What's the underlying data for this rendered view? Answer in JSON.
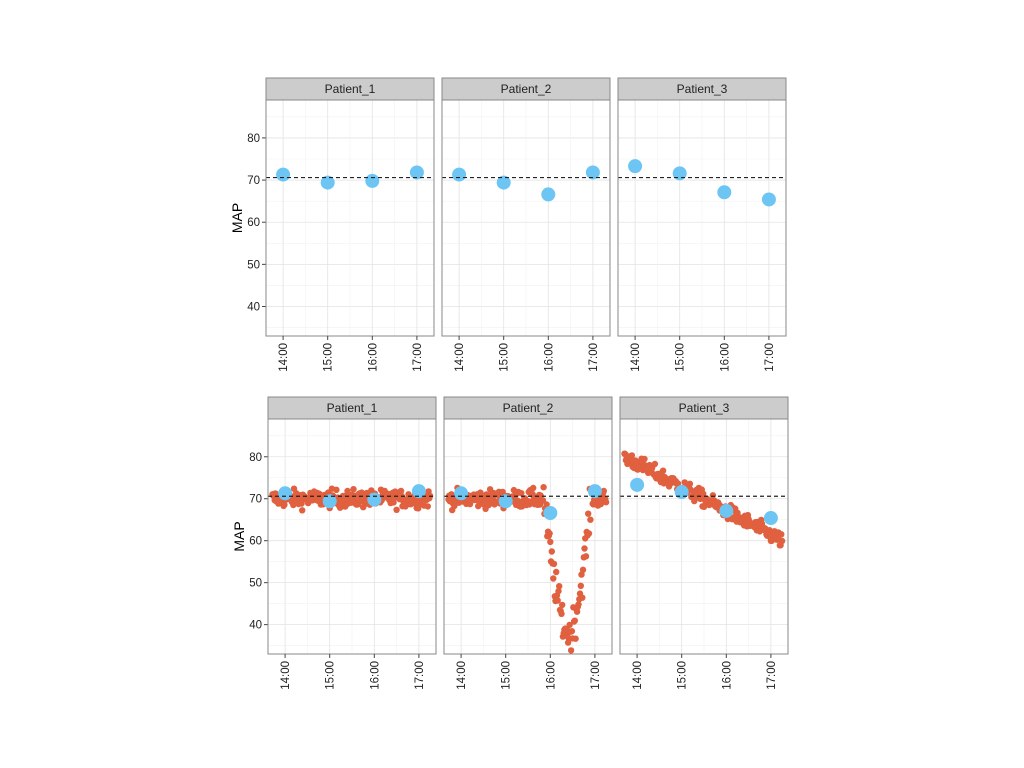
{
  "chart_data": [
    {
      "type": "scatter",
      "name": "hourly-map-faceted",
      "ylabel": "MAP",
      "ylim": [
        33,
        89
      ],
      "y_ticks": [
        40,
        50,
        60,
        70,
        80
      ],
      "x_ticks": [
        "14:00",
        "15:00",
        "16:00",
        "17:00"
      ],
      "reference_line": 70.6,
      "colors": {
        "hourly": "#6cc5f3",
        "minute": "#e0603f",
        "strip": "#cccccc",
        "reference": "#222222"
      },
      "panels": [
        {
          "strip": "Patient_1",
          "hourly": [
            {
              "x": "14:00",
              "y": 71.3
            },
            {
              "x": "15:00",
              "y": 69.4
            },
            {
              "x": "16:00",
              "y": 69.8
            },
            {
              "x": "17:00",
              "y": 71.8
            }
          ]
        },
        {
          "strip": "Patient_2",
          "hourly": [
            {
              "x": "14:00",
              "y": 71.3
            },
            {
              "x": "15:00",
              "y": 69.4
            },
            {
              "x": "16:00",
              "y": 66.6
            },
            {
              "x": "17:00",
              "y": 71.8
            }
          ]
        },
        {
          "strip": "Patient_3",
          "hourly": [
            {
              "x": "14:00",
              "y": 73.3
            },
            {
              "x": "15:00",
              "y": 71.6
            },
            {
              "x": "16:00",
              "y": 67.1
            },
            {
              "x": "17:00",
              "y": 65.4
            }
          ]
        }
      ]
    },
    {
      "type": "scatter",
      "name": "minute-and-hourly-map-faceted",
      "ylabel": "MAP",
      "ylim": [
        33,
        89
      ],
      "y_ticks": [
        40,
        50,
        60,
        70,
        80
      ],
      "x_ticks": [
        "14:00",
        "15:00",
        "16:00",
        "17:00"
      ],
      "reference_line": 70.6,
      "colors": {
        "hourly": "#6cc5f3",
        "minute": "#e0603f",
        "strip": "#cccccc",
        "reference": "#222222"
      },
      "panels": [
        {
          "strip": "Patient_1",
          "hourly": [
            {
              "x": "14:00",
              "y": 71.3
            },
            {
              "x": "15:00",
              "y": 69.4
            },
            {
              "x": "16:00",
              "y": 69.8
            },
            {
              "x": "17:00",
              "y": 71.8
            }
          ],
          "minute": {
            "baseline": 70.0,
            "spread": 3.0,
            "pattern": "stable"
          }
        },
        {
          "strip": "Patient_2",
          "hourly": [
            {
              "x": "14:00",
              "y": 71.3
            },
            {
              "x": "15:00",
              "y": 69.4
            },
            {
              "x": "16:00",
              "y": 66.6
            },
            {
              "x": "17:00",
              "y": 71.8
            }
          ],
          "minute": {
            "baseline": 70.0,
            "spread": 3.0,
            "pattern": "dip",
            "dip_minimum": 37.5,
            "dip_time": "16:25"
          }
        },
        {
          "strip": "Patient_3",
          "hourly": [
            {
              "x": "14:00",
              "y": 73.3
            },
            {
              "x": "15:00",
              "y": 71.6
            },
            {
              "x": "16:00",
              "y": 67.1
            },
            {
              "x": "17:00",
              "y": 65.4
            }
          ],
          "minute": {
            "start": 80.0,
            "end": 60.0,
            "spread": 3.0,
            "pattern": "declining"
          }
        }
      ]
    }
  ]
}
